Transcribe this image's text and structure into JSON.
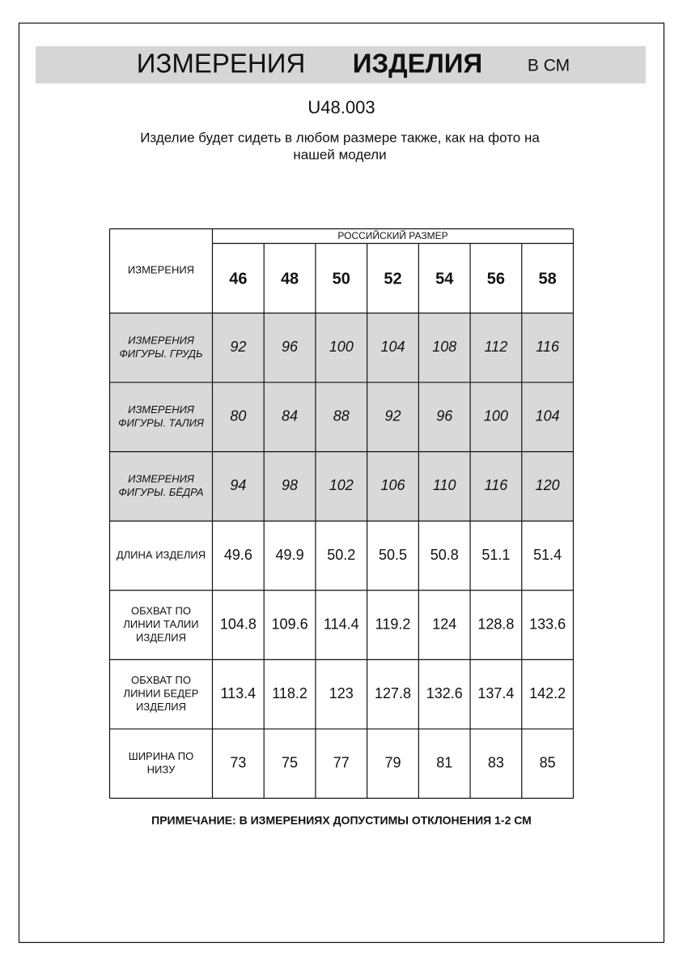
{
  "header": {
    "title_part1": "ИЗМЕРЕНИЯ",
    "title_part2": "ИЗДЕЛИЯ",
    "unit": "В СМ"
  },
  "code": "U48.003",
  "description": [
    "Изделие будет сидеть в любом размере также, как на фото на",
    "нашей модели"
  ],
  "table": {
    "corner": "ИЗМЕРЕНИЯ",
    "group_header": "РОССИЙСКИЙ РАЗМЕР",
    "sizes": [
      "46",
      "48",
      "50",
      "52",
      "54",
      "56",
      "58"
    ],
    "rows": [
      {
        "label": [
          "ИЗМЕРЕНИЯ",
          "ФИГУРЫ. ГРУДЬ"
        ],
        "shaded": true,
        "values": [
          "92",
          "96",
          "100",
          "104",
          "108",
          "112",
          "116"
        ]
      },
      {
        "label": [
          "ИЗМЕРЕНИЯ",
          "ФИГУРЫ. ТАЛИЯ"
        ],
        "shaded": true,
        "values": [
          "80",
          "84",
          "88",
          "92",
          "96",
          "100",
          "104"
        ]
      },
      {
        "label": [
          "ИЗМЕРЕНИЯ",
          "ФИГУРЫ. БЁДРА"
        ],
        "shaded": true,
        "values": [
          "94",
          "98",
          "102",
          "106",
          "110",
          "116",
          "120"
        ]
      },
      {
        "label": [
          "ДЛИНА ИЗДЕЛИЯ"
        ],
        "shaded": false,
        "values": [
          "49.6",
          "49.9",
          "50.2",
          "50.5",
          "50.8",
          "51.1",
          "51.4"
        ]
      },
      {
        "label": [
          "ОБХВАТ ПО",
          "ЛИНИИ ТАЛИИ",
          "ИЗДЕЛИЯ"
        ],
        "shaded": false,
        "values": [
          "104.8",
          "109.6",
          "114.4",
          "119.2",
          "124",
          "128.8",
          "133.6"
        ]
      },
      {
        "label": [
          "ОБХВАТ ПО",
          "ЛИНИИ БЕДЕР",
          "ИЗДЕЛИЯ"
        ],
        "shaded": false,
        "values": [
          "113.4",
          "118.2",
          "123",
          "127.8",
          "132.6",
          "137.4",
          "142.2"
        ]
      },
      {
        "label": [
          "ШИРИНА ПО",
          "НИЗУ"
        ],
        "shaded": false,
        "values": [
          "73",
          "75",
          "77",
          "79",
          "81",
          "83",
          "85"
        ]
      }
    ]
  },
  "note": "ПРИМЕЧАНИЕ: В ИЗМЕРЕНИЯХ ДОПУСТИМЫ ОТКЛОНЕНИЯ 1-2 СМ"
}
